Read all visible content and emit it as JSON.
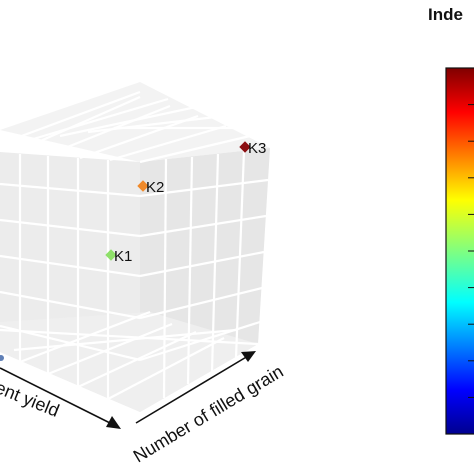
{
  "chart_data": {
    "type": "scatter",
    "projection": "3d",
    "axes": {
      "x_label": "ent yield",
      "y_label": "Number of filled grain"
    },
    "points": [
      {
        "label": "K1",
        "color": "#8fe06a"
      },
      {
        "label": "K2",
        "color": "#f08a2a"
      },
      {
        "label": "K3",
        "color": "#8b0f12"
      }
    ],
    "colorbar": {
      "title": "Inde",
      "colormap": "jet"
    },
    "grid": true,
    "pane_color": "#ebebeb",
    "gridline_color": "#ffffff"
  }
}
